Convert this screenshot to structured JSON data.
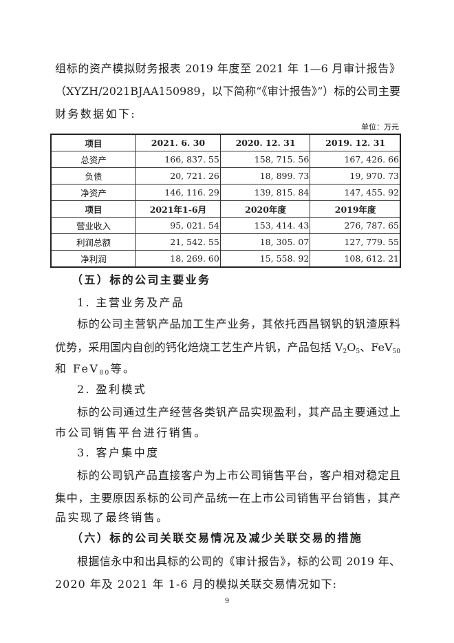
{
  "intro_lines": [
    "组标的资产模拟财务报表 2019 年度至 2021 年 1—6 月审计报告》",
    "（XYZH/2021BJAA150989，以下简称“《审计报告》”）标的公司主要",
    "财务数据如下:"
  ],
  "unit": "单位：万元",
  "table": {
    "header1": [
      "项目",
      "2021. 6. 30",
      "2020. 12. 31",
      "2019. 12. 31"
    ],
    "rows1": [
      [
        "总资产",
        "166, 837. 55",
        "158, 715. 56",
        "167, 426. 66"
      ],
      [
        "负债",
        "20, 721. 26",
        "18, 899. 73",
        "19, 970. 73"
      ],
      [
        "净资产",
        "146, 116. 29",
        "139, 815. 84",
        "147, 455. 92"
      ]
    ],
    "header2": [
      "项目",
      "2021年1-6月",
      "2020年度",
      "2019年度"
    ],
    "rows2": [
      [
        "营业收入",
        "95, 021. 54",
        "153, 414. 43",
        "276, 787. 65"
      ],
      [
        "利润总额",
        "21, 542. 55",
        "18, 305. 07",
        "127, 779. 55"
      ],
      [
        "净利润",
        "18, 269. 60",
        "15, 558. 92",
        "108, 612. 21"
      ]
    ]
  },
  "section5": {
    "title": "（五）标的公司主要业务",
    "sub1": "1. 主营业务及产品",
    "p1_line1": "标的公司主营钒产品加工生产业务，其依托西昌钢钒的钒渣原料",
    "p1_line2": {
      "a": "优势，采用国内自创的钙化焙烧工艺生产片钒，产品包括 V",
      "s1": "2",
      "b": "O",
      "s2": "5",
      "c": "、FeV",
      "s3": "50"
    },
    "p1_line3": {
      "a": "和 FeV",
      "s1": "80",
      "b": "等。"
    },
    "sub2": "2. 盈利模式",
    "p2_line1": "标的公司通过生产经营各类钒产品实现盈利，其产品主要通过上",
    "p2_line2": "市公司销售平台进行销售。",
    "sub3": "3. 客户集中度",
    "p3_line1": "标的公司钒产品直接客户为上市公司销售平台，客户相对稳定且",
    "p3_line2": "集中，主要原因系标的公司产品统一在上市公司销售平台销售，其产",
    "p3_line3": "品实现了最终销售。"
  },
  "section6": {
    "title": "（六）标的公司关联交易情况及减少关联交易的措施",
    "p_line1": "根据信永中和出具标的公司的《审计报告》，标的公司 2019 年、",
    "p_line2": "2020 年及 2021 年 1-6 月的模拟关联交易情况如下:"
  },
  "page_number": "9"
}
